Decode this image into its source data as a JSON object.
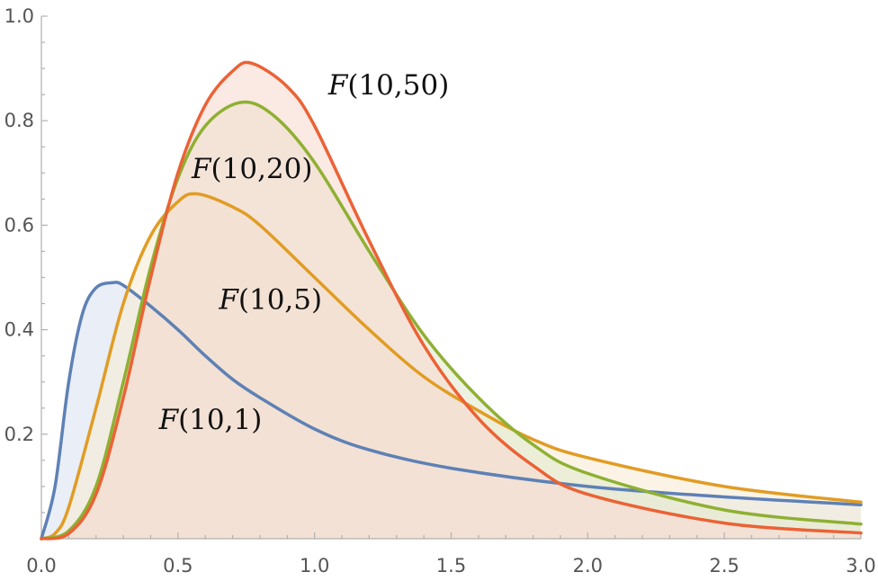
{
  "chart_data": {
    "type": "area",
    "title": "",
    "xlabel": "",
    "ylabel": "",
    "xlim": [
      0,
      3
    ],
    "ylim": [
      0,
      1
    ],
    "x_ticks": [
      "0.0",
      "0.5",
      "1.0",
      "1.5",
      "2.0",
      "2.5",
      "3.0"
    ],
    "y_ticks": [
      "0.2",
      "0.4",
      "0.6",
      "0.8",
      "1.0"
    ],
    "grid": false,
    "legend": "inline labels",
    "series": [
      {
        "name": "F(10,1)",
        "label_italic": "F",
        "label_rest": "(10,1)",
        "color": "#5e81b5",
        "fill": "#dbe3f1",
        "x": [
          0,
          0.05,
          0.1,
          0.15,
          0.2,
          0.26,
          0.3,
          0.4,
          0.5,
          0.6,
          0.7,
          0.8,
          1.0,
          1.2,
          1.5,
          2.0,
          2.5,
          3.0
        ],
        "y": [
          0,
          0.1,
          0.3,
          0.43,
          0.48,
          0.49,
          0.485,
          0.445,
          0.4,
          0.35,
          0.305,
          0.27,
          0.21,
          0.17,
          0.135,
          0.1,
          0.08,
          0.065
        ]
      },
      {
        "name": "F(10,5)",
        "label_italic": "F",
        "label_rest": "(10,5)",
        "color": "#e19c24",
        "fill": "#f8ecd6",
        "x": [
          0,
          0.05,
          0.1,
          0.2,
          0.3,
          0.4,
          0.5,
          0.57,
          0.7,
          0.8,
          1.0,
          1.2,
          1.4,
          1.6,
          1.8,
          2.0,
          2.5,
          3.0
        ],
        "y": [
          0,
          0.01,
          0.06,
          0.25,
          0.45,
          0.58,
          0.645,
          0.66,
          0.635,
          0.6,
          0.5,
          0.4,
          0.31,
          0.245,
          0.19,
          0.155,
          0.1,
          0.07
        ]
      },
      {
        "name": "F(10,20)",
        "label_italic": "F",
        "label_rest": "(10,20)",
        "color": "#8fb032",
        "fill": "#e3e9cf",
        "x": [
          0,
          0.1,
          0.2,
          0.3,
          0.4,
          0.5,
          0.6,
          0.73,
          0.85,
          1.0,
          1.2,
          1.4,
          1.6,
          1.8,
          2.0,
          2.5,
          3.0
        ],
        "y": [
          0,
          0.015,
          0.1,
          0.3,
          0.52,
          0.69,
          0.79,
          0.835,
          0.81,
          0.72,
          0.55,
          0.39,
          0.27,
          0.18,
          0.125,
          0.055,
          0.028
        ]
      },
      {
        "name": "F(10,50)",
        "label_italic": "F",
        "label_rest": "(10,50)",
        "color": "#eb6235",
        "fill": "#f8dbd2",
        "x": [
          0,
          0.1,
          0.2,
          0.3,
          0.4,
          0.5,
          0.6,
          0.7,
          0.77,
          0.9,
          1.0,
          1.2,
          1.4,
          1.6,
          1.8,
          2.0,
          2.5,
          3.0
        ],
        "y": [
          0,
          0.01,
          0.085,
          0.27,
          0.5,
          0.7,
          0.83,
          0.895,
          0.91,
          0.865,
          0.79,
          0.57,
          0.37,
          0.23,
          0.14,
          0.085,
          0.03,
          0.011
        ]
      }
    ]
  }
}
